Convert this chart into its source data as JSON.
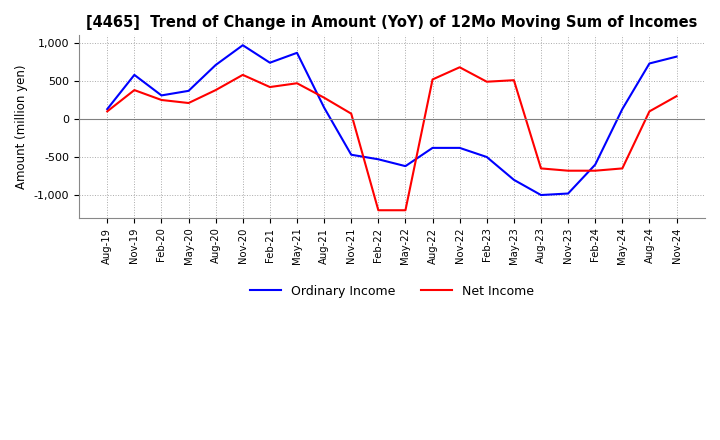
{
  "title": "[4465]  Trend of Change in Amount (YoY) of 12Mo Moving Sum of Incomes",
  "ylabel": "Amount (million yen)",
  "ylim": [
    -1300,
    1100
  ],
  "yticks": [
    -1000,
    -500,
    0,
    500,
    1000
  ],
  "ordinary_income_color": "#0000FF",
  "net_income_color": "#FF0000",
  "background_color": "#FFFFFF",
  "grid_color": "#AAAAAA",
  "x_labels": [
    "Aug-19",
    "Nov-19",
    "Feb-20",
    "May-20",
    "Aug-20",
    "Nov-20",
    "Feb-21",
    "May-21",
    "Aug-21",
    "Nov-21",
    "Feb-22",
    "May-22",
    "Aug-22",
    "Nov-22",
    "Feb-23",
    "May-23",
    "Aug-23",
    "Nov-23",
    "Feb-24",
    "May-24",
    "Aug-24",
    "Nov-24"
  ],
  "ordinary_income": [
    130,
    580,
    310,
    370,
    710,
    970,
    740,
    870,
    150,
    -470,
    -530,
    -620,
    -380,
    -380,
    -500,
    -800,
    -1000,
    -980,
    -600,
    130,
    730,
    820
  ],
  "net_income": [
    100,
    380,
    250,
    210,
    380,
    580,
    420,
    470,
    280,
    70,
    -1200,
    -1200,
    520,
    680,
    490,
    510,
    -650,
    -680,
    -680,
    -650,
    100,
    300
  ]
}
